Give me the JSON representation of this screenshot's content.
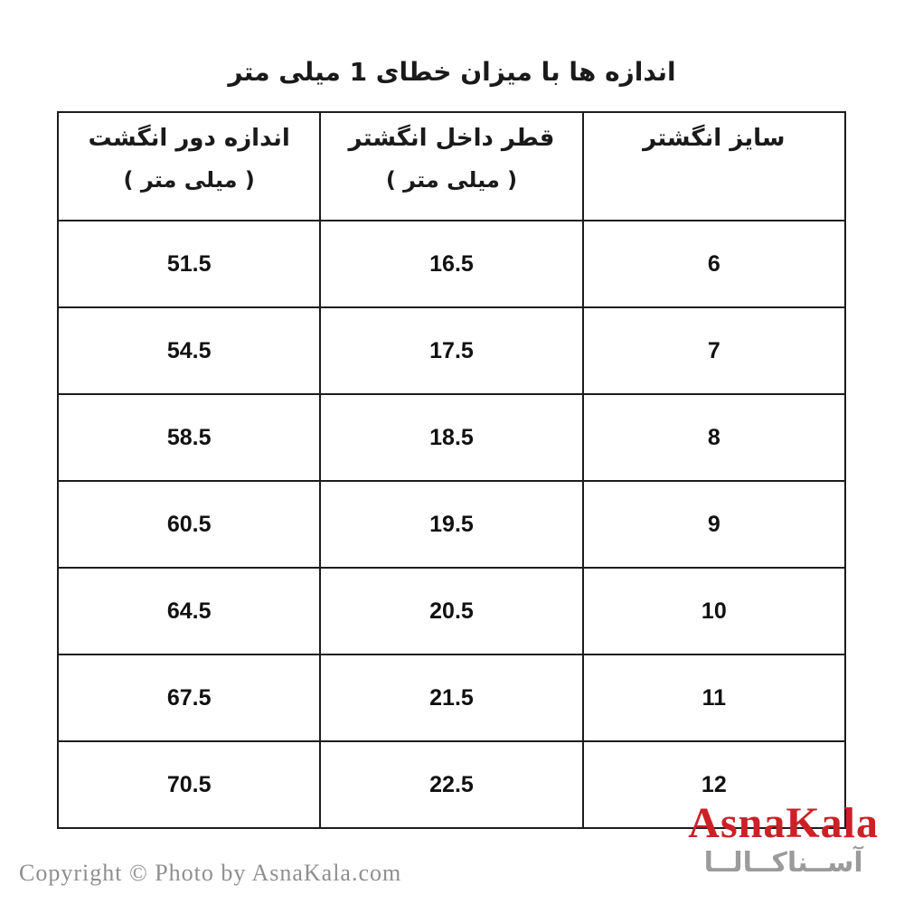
{
  "title": "اندازه ها با میزان خطای 1 میلی متر",
  "table": {
    "columns": [
      {
        "id": "finger_circumference_mm",
        "label": "اندازه دور انگشت",
        "unit": "( میلی متر )"
      },
      {
        "id": "inner_diameter_mm",
        "label": "قطر داخل انگشتر",
        "unit": "( میلی متر )"
      },
      {
        "id": "ring_size",
        "label": "سایز انگشتر",
        "unit": ""
      }
    ],
    "rows": [
      {
        "ring_size": "6",
        "inner_diameter_mm": "16.5",
        "finger_circumference_mm": "51.5"
      },
      {
        "ring_size": "7",
        "inner_diameter_mm": "17.5",
        "finger_circumference_mm": "54.5"
      },
      {
        "ring_size": "8",
        "inner_diameter_mm": "18.5",
        "finger_circumference_mm": "58.5"
      },
      {
        "ring_size": "9",
        "inner_diameter_mm": "19.5",
        "finger_circumference_mm": "60.5"
      },
      {
        "ring_size": "10",
        "inner_diameter_mm": "20.5",
        "finger_circumference_mm": "64.5"
      },
      {
        "ring_size": "11",
        "inner_diameter_mm": "21.5",
        "finger_circumference_mm": "67.5"
      },
      {
        "ring_size": "12",
        "inner_diameter_mm": "22.5",
        "finger_circumference_mm": "70.5"
      }
    ]
  },
  "chart_data": {
    "type": "table",
    "title": "اندازه ها با میزان خطای 1 میلی متر",
    "columns_rtl": [
      "سایز انگشتر",
      "قطر داخل انگشتر ( میلی متر )",
      "اندازه دور انگشت ( میلی متر )"
    ],
    "ring_size": [
      6,
      7,
      8,
      9,
      10,
      11,
      12
    ],
    "inner_diameter_mm": [
      16.5,
      17.5,
      18.5,
      19.5,
      20.5,
      21.5,
      22.5
    ],
    "finger_circumference_mm": [
      51.5,
      54.5,
      58.5,
      60.5,
      64.5,
      67.5,
      70.5
    ]
  },
  "branding": {
    "logo_latin": "AsnaKala",
    "logo_persian": "آســناکــالــا",
    "copyright": "Copyright © Photo by AsnaKala.com"
  },
  "colors": {
    "logo_red": "#cc2027",
    "logo_gray": "#9b9b9b",
    "copyright_gray": "#8f8f8f",
    "table_border": "#1c1c1c",
    "background": "#ffffff"
  }
}
